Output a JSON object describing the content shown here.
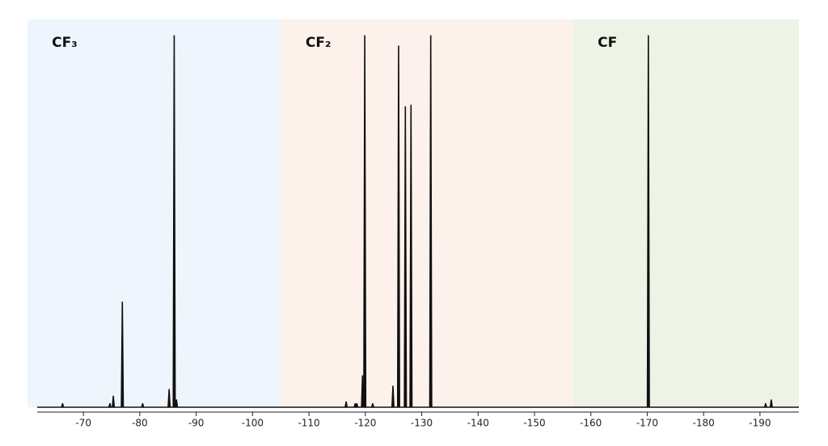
{
  "chart_data": {
    "type": "stick",
    "regions": [
      {
        "label": "CF₃",
        "range": [
          -60.1,
          -105.1
        ],
        "color": "#eef5fc"
      },
      {
        "label": "CF₂",
        "range": [
          -105.1,
          -156.9
        ],
        "color": "#fdf1ec"
      },
      {
        "label": "CF",
        "range": [
          -156.9,
          -196.9
        ],
        "color": "#edf4e6"
      }
    ],
    "x": [
      -66.3,
      -74.7,
      -75.3,
      -76.9,
      -80.5,
      -85.2,
      -86.1,
      -86.5,
      -116.6,
      -118.2,
      -118.5,
      -119.5,
      -119.9,
      -121.3,
      -124.9,
      -125.9,
      -127.1,
      -128.1,
      -131.6,
      -170.2,
      -191.0,
      -192.0
    ],
    "values": [
      1,
      1,
      3,
      28.3,
      1,
      4.8,
      100,
      2,
      1.5,
      1,
      1,
      8.5,
      100,
      1,
      5.7,
      97.2,
      80.9,
      81.3,
      100,
      100,
      1,
      2
    ],
    "color": "#111111",
    "xlim": [
      -61.8,
      -196.9
    ],
    "xticks": [
      -70,
      -80,
      -90,
      -100,
      -110,
      -120,
      -130,
      -140,
      -150,
      -160,
      -170,
      -180,
      -190
    ],
    "ylim": [
      0,
      100
    ]
  }
}
